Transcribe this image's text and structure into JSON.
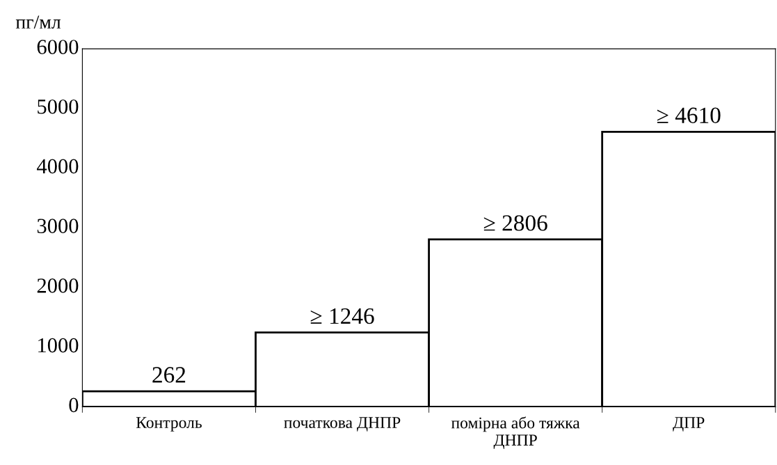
{
  "chart_data": {
    "type": "bar",
    "ylabel": "пг/мл",
    "categories": [
      "Контроль",
      "початкова ДНПР",
      "помірна або тяжка\nДНПР",
      "ДПР"
    ],
    "values": [
      262,
      1246,
      2806,
      4610
    ],
    "value_labels": [
      "262",
      "≥ 1246",
      "≥ 2806",
      "≥ 4610"
    ],
    "color": "#ffffff",
    "ylim": [
      0,
      6000
    ],
    "yticks": [
      0,
      1000,
      2000,
      3000,
      4000,
      5000,
      6000
    ]
  }
}
